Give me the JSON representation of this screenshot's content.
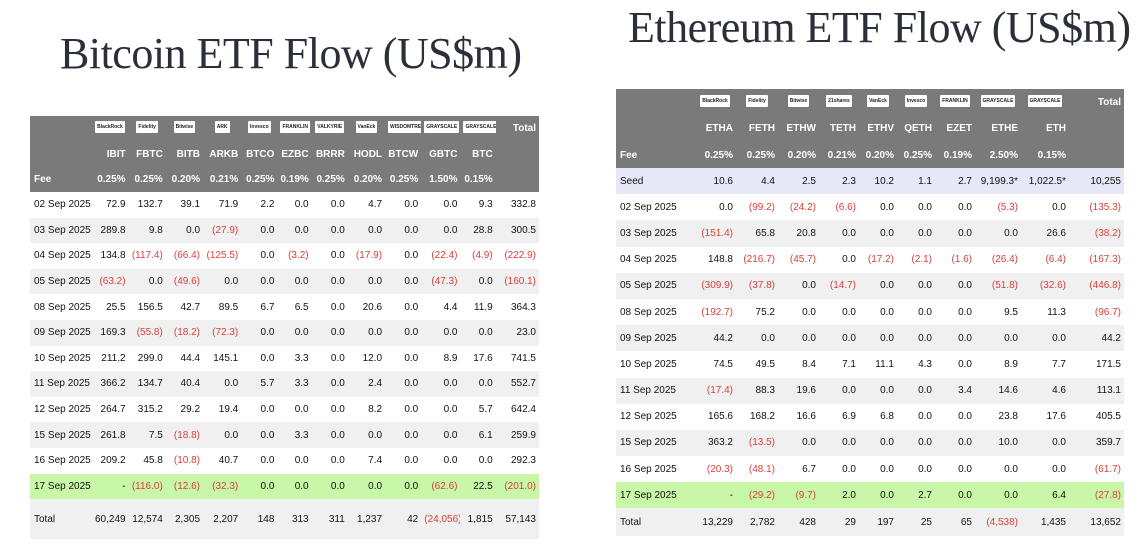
{
  "btc": {
    "title": "Bitcoin ETF Flow (US$m)",
    "logos": [
      "BlackRock",
      "Fidelity",
      "Bitwise",
      "ARK",
      "Invesco",
      "FRANKLIN",
      "VALKYRIE",
      "VanEck",
      "WISDOMTREE",
      "GRAYSCALE",
      "GRAYSCALE"
    ],
    "total_label": "Total",
    "tickers": [
      "",
      "IBIT",
      "FBTC",
      "BITB",
      "ARKB",
      "BTCO",
      "EZBC",
      "BRRR",
      "HODL",
      "BTCW",
      "GBTC",
      "BTC",
      ""
    ],
    "fees": [
      "Fee",
      "0.25%",
      "0.25%",
      "0.20%",
      "0.21%",
      "0.25%",
      "0.19%",
      "0.25%",
      "0.20%",
      "0.25%",
      "1.50%",
      "0.15%",
      ""
    ],
    "rows": [
      [
        "02 Sep 2025",
        "72.9",
        "132.7",
        "39.1",
        "71.9",
        "2.2",
        "0.0",
        "0.0",
        "4.7",
        "0.0",
        "0.0",
        "9.3",
        "332.8"
      ],
      [
        "03 Sep 2025",
        "289.8",
        "9.8",
        "0.0",
        "(27.9)",
        "0.0",
        "0.0",
        "0.0",
        "0.0",
        "0.0",
        "0.0",
        "28.8",
        "300.5"
      ],
      [
        "04 Sep 2025",
        "134.8",
        "(117.4)",
        "(66.4)",
        "(125.5)",
        "0.0",
        "(3.2)",
        "0.0",
        "(17.9)",
        "0.0",
        "(22.4)",
        "(4.9)",
        "(222.9)"
      ],
      [
        "05 Sep 2025",
        "(63.2)",
        "0.0",
        "(49.6)",
        "0.0",
        "0.0",
        "0.0",
        "0.0",
        "0.0",
        "0.0",
        "(47.3)",
        "0.0",
        "(160.1)"
      ],
      [
        "08 Sep 2025",
        "25.5",
        "156.5",
        "42.7",
        "89.5",
        "6.7",
        "6.5",
        "0.0",
        "20.6",
        "0.0",
        "4.4",
        "11.9",
        "364.3"
      ],
      [
        "09 Sep 2025",
        "169.3",
        "(55.8)",
        "(18.2)",
        "(72.3)",
        "0.0",
        "0.0",
        "0.0",
        "0.0",
        "0.0",
        "0.0",
        "0.0",
        "23.0"
      ],
      [
        "10 Sep 2025",
        "211.2",
        "299.0",
        "44.4",
        "145.1",
        "0.0",
        "3.3",
        "0.0",
        "12.0",
        "0.0",
        "8.9",
        "17.6",
        "741.5"
      ],
      [
        "11 Sep 2025",
        "366.2",
        "134.7",
        "40.4",
        "0.0",
        "5.7",
        "3.3",
        "0.0",
        "2.4",
        "0.0",
        "0.0",
        "0.0",
        "552.7"
      ],
      [
        "12 Sep 2025",
        "264.7",
        "315.2",
        "29.2",
        "19.4",
        "0.0",
        "0.0",
        "0.0",
        "8.2",
        "0.0",
        "0.0",
        "5.7",
        "642.4"
      ],
      [
        "15 Sep 2025",
        "261.8",
        "7.5",
        "(18.8)",
        "0.0",
        "0.0",
        "3.3",
        "0.0",
        "0.0",
        "0.0",
        "0.0",
        "6.1",
        "259.9"
      ],
      [
        "16 Sep 2025",
        "209.2",
        "45.8",
        "(10.8)",
        "40.7",
        "0.0",
        "0.0",
        "0.0",
        "7.4",
        "0.0",
        "0.0",
        "0.0",
        "292.3"
      ],
      [
        "17 Sep 2025",
        "-",
        "(116.0)",
        "(12.6)",
        "(32.3)",
        "0.0",
        "0.0",
        "0.0",
        "0.0",
        "0.0",
        "(62.6)",
        "22.5",
        "(201.0)"
      ]
    ],
    "total_row": [
      "Total",
      "60,249",
      "12,574",
      "2,305",
      "2,207",
      "148",
      "313",
      "311",
      "1,237",
      "42",
      "(24,056)",
      "1,815",
      "57,143"
    ]
  },
  "eth": {
    "title": "Ethereum ETF Flow (US$m)",
    "logos": [
      "BlackRock",
      "Fidelity",
      "Bitwise",
      "21shares",
      "VanEck",
      "Invesco",
      "FRANKLIN",
      "GRAYSCALE",
      "GRAYSCALE"
    ],
    "total_label": "Total",
    "tickers": [
      "",
      "ETHA",
      "FETH",
      "ETHW",
      "TETH",
      "ETHV",
      "QETH",
      "EZET",
      "ETHE",
      "ETH",
      ""
    ],
    "fees": [
      "Fee",
      "0.25%",
      "0.25%",
      "0.20%",
      "0.21%",
      "0.20%",
      "0.25%",
      "0.19%",
      "2.50%",
      "0.15%",
      ""
    ],
    "seed": [
      "Seed",
      "10.6",
      "4.4",
      "2.5",
      "2.3",
      "10.2",
      "1.1",
      "2.7",
      "9,199.3*",
      "1,022.5*",
      "10,255"
    ],
    "rows": [
      [
        "02 Sep 2025",
        "0.0",
        "(99.2)",
        "(24.2)",
        "(6.6)",
        "0.0",
        "0.0",
        "0.0",
        "(5.3)",
        "0.0",
        "(135.3)"
      ],
      [
        "03 Sep 2025",
        "(151.4)",
        "65.8",
        "20.8",
        "0.0",
        "0.0",
        "0.0",
        "0.0",
        "0.0",
        "26.6",
        "(38.2)"
      ],
      [
        "04 Sep 2025",
        "148.8",
        "(216.7)",
        "(45.7)",
        "0.0",
        "(17.2)",
        "(2.1)",
        "(1.6)",
        "(26.4)",
        "(6.4)",
        "(167.3)"
      ],
      [
        "05 Sep 2025",
        "(309.9)",
        "(37.8)",
        "0.0",
        "(14.7)",
        "0.0",
        "0.0",
        "0.0",
        "(51.8)",
        "(32.6)",
        "(446.8)"
      ],
      [
        "08 Sep 2025",
        "(192.7)",
        "75.2",
        "0.0",
        "0.0",
        "0.0",
        "0.0",
        "0.0",
        "9.5",
        "11.3",
        "(96.7)"
      ],
      [
        "09 Sep 2025",
        "44.2",
        "0.0",
        "0.0",
        "0.0",
        "0.0",
        "0.0",
        "0.0",
        "0.0",
        "0.0",
        "44.2"
      ],
      [
        "10 Sep 2025",
        "74.5",
        "49.5",
        "8.4",
        "7.1",
        "11.1",
        "4.3",
        "0.0",
        "8.9",
        "7.7",
        "171.5"
      ],
      [
        "11 Sep 2025",
        "(17.4)",
        "88.3",
        "19.6",
        "0.0",
        "0.0",
        "0.0",
        "3.4",
        "14.6",
        "4.6",
        "113.1"
      ],
      [
        "12 Sep 2025",
        "165.6",
        "168.2",
        "16.6",
        "6.9",
        "6.8",
        "0.0",
        "0.0",
        "23.8",
        "17.6",
        "405.5"
      ],
      [
        "15 Sep 2025",
        "363.2",
        "(13.5)",
        "0.0",
        "0.0",
        "0.0",
        "0.0",
        "0.0",
        "10.0",
        "0.0",
        "359.7"
      ],
      [
        "16 Sep 2025",
        "(20.3)",
        "(48.1)",
        "6.7",
        "0.0",
        "0.0",
        "0.0",
        "0.0",
        "0.0",
        "0.0",
        "(61.7)"
      ],
      [
        "17 Sep 2025",
        "-",
        "(29.2)",
        "(9.7)",
        "2.0",
        "0.0",
        "2.7",
        "0.0",
        "0.0",
        "6.4",
        "(27.8)"
      ]
    ],
    "total_row": [
      "Total",
      "13,229",
      "2,782",
      "428",
      "29",
      "197",
      "25",
      "65",
      "(4,538)",
      "1,435",
      "13,652"
    ]
  },
  "colors": {
    "header_bg": "#7a7a7a",
    "highlight_row": "#c8f7a8",
    "negative": "#d9403a",
    "seed_bg": "#e6e8f8",
    "alt_row": "#f0f0f0"
  }
}
